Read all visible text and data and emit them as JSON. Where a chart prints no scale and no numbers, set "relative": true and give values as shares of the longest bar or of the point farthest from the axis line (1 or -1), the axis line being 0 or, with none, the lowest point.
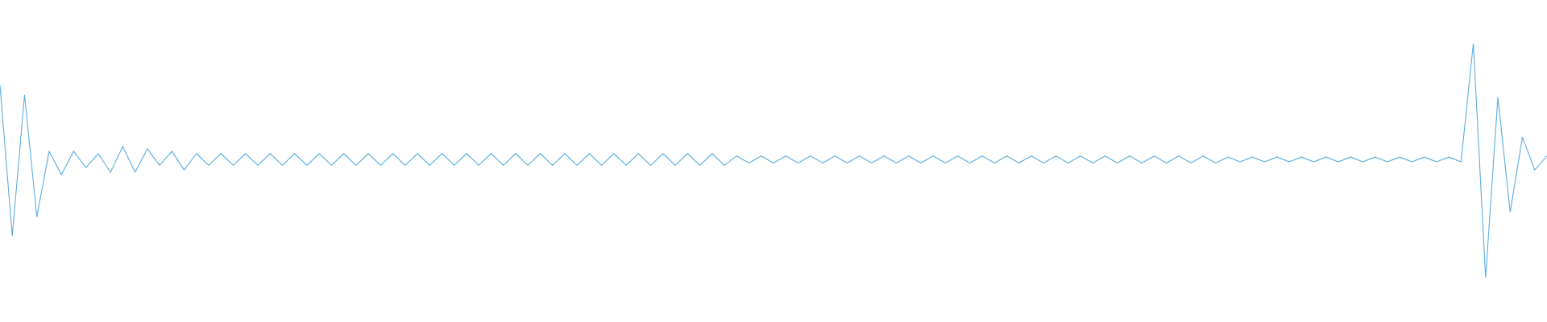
{
  "chart_data": {
    "type": "line",
    "relative": true,
    "categories": [
      null,
      null,
      null,
      null,
      null,
      null,
      null,
      null,
      null,
      null,
      null,
      null,
      null,
      null,
      null,
      null,
      null,
      null,
      null,
      null,
      null,
      null,
      null,
      null,
      null,
      null,
      null,
      null,
      null,
      null,
      null,
      null,
      null,
      null,
      null,
      null,
      null,
      null,
      null,
      null,
      null,
      null,
      null,
      null,
      null,
      null,
      null,
      null,
      null,
      null,
      null,
      null,
      null,
      null,
      null,
      null,
      null,
      null,
      null,
      null,
      null,
      null,
      null,
      null,
      null,
      null,
      null,
      null,
      null,
      null,
      null,
      null,
      null,
      null,
      null,
      null,
      null,
      null,
      null,
      null,
      null,
      null,
      null,
      null,
      null,
      null,
      null,
      null,
      null,
      null,
      null,
      null,
      null,
      null,
      null,
      null,
      null,
      null,
      null,
      null,
      null,
      null,
      null,
      null,
      null,
      null,
      null,
      null,
      null,
      null,
      null,
      null,
      null,
      null,
      null,
      null,
      null,
      null,
      null,
      null,
      null,
      null,
      null,
      null,
      null,
      null,
      null
    ],
    "series": [
      {
        "color": "#5dade2",
        "values": [
          0.82,
          0.18,
          0.78,
          0.26,
          0.54,
          0.44,
          0.54,
          0.47,
          0.53,
          0.45,
          0.56,
          0.45,
          0.55,
          0.48,
          0.54,
          0.46,
          0.53,
          0.48,
          0.53,
          0.48,
          0.53,
          0.48,
          0.53,
          0.48,
          0.53,
          0.48,
          0.53,
          0.48,
          0.53,
          0.48,
          0.53,
          0.48,
          0.53,
          0.48,
          0.53,
          0.48,
          0.53,
          0.48,
          0.53,
          0.48,
          0.53,
          0.48,
          0.53,
          0.48,
          0.53,
          0.48,
          0.53,
          0.48,
          0.53,
          0.48,
          0.53,
          0.48,
          0.53,
          0.48,
          0.53,
          0.48,
          0.53,
          0.48,
          0.53,
          0.48,
          0.52,
          0.49,
          0.52,
          0.49,
          0.52,
          0.49,
          0.52,
          0.49,
          0.52,
          0.49,
          0.52,
          0.49,
          0.52,
          0.49,
          0.52,
          0.49,
          0.52,
          0.49,
          0.52,
          0.49,
          0.52,
          0.49,
          0.52,
          0.49,
          0.52,
          0.49,
          0.52,
          0.49,
          0.52,
          0.49,
          0.52,
          0.49,
          0.52,
          0.49,
          0.52,
          0.49,
          0.52,
          0.49,
          0.52,
          0.49,
          0.515,
          0.495,
          0.515,
          0.495,
          0.515,
          0.495,
          0.515,
          0.495,
          0.515,
          0.495,
          0.515,
          0.495,
          0.515,
          0.495,
          0.515,
          0.495,
          0.515,
          0.495,
          0.515,
          0.495,
          1.0,
          0.0,
          0.77,
          0.28,
          0.6,
          0.46,
          0.52
        ]
      }
    ]
  }
}
